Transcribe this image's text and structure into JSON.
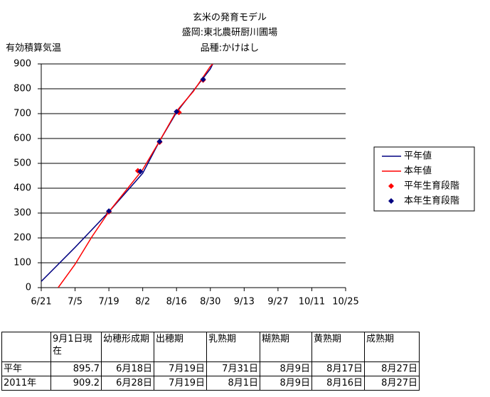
{
  "chart_data": {
    "type": "line",
    "title": [
      "玄米の発育モデル",
      "盛岡:東北農研厨川圃場",
      "品種:かけはし"
    ],
    "y_label": "有効積算気温",
    "xlim": [
      "6/21",
      "10/25"
    ],
    "xticks": [
      "6/21",
      "7/5",
      "7/19",
      "8/2",
      "8/16",
      "8/30",
      "9/13",
      "9/27",
      "10/11",
      "10/25"
    ],
    "ylim": [
      0,
      900
    ],
    "yticks": [
      0,
      100,
      200,
      300,
      400,
      500,
      600,
      700,
      800,
      900
    ],
    "grid": true,
    "series": [
      {
        "name": "平年値",
        "color": "#000080",
        "style": "line",
        "x": [
          "6/21",
          "7/5",
          "7/19",
          "8/2",
          "8/9",
          "8/16",
          "8/30",
          "8/31"
        ],
        "values": [
          25,
          162,
          305,
          460,
          590,
          705,
          880,
          900
        ]
      },
      {
        "name": "本年値",
        "color": "#ff0000",
        "style": "line",
        "x": [
          "6/28",
          "7/5",
          "7/12",
          "7/19",
          "7/26",
          "8/2",
          "8/9",
          "8/16",
          "8/23",
          "8/30",
          "8/31"
        ],
        "values": [
          0,
          94,
          205,
          305,
          390,
          475,
          590,
          710,
          790,
          890,
          900
        ]
      },
      {
        "name": "平年生育段階",
        "color": "#ff0000",
        "style": "marker",
        "x": [
          "7/19",
          "7/31",
          "8/9",
          "8/17",
          "8/27"
        ],
        "values": [
          305,
          470,
          585,
          705,
          835
        ]
      },
      {
        "name": "本年生育段階",
        "color": "#000080",
        "style": "marker",
        "x": [
          "7/19",
          "8/1",
          "8/9",
          "8/16",
          "8/27"
        ],
        "values": [
          308,
          467,
          588,
          708,
          838
        ]
      }
    ]
  },
  "table": {
    "header": [
      "",
      "9月1日現在",
      "幼穂形成期",
      "出穂期",
      "乳熟期",
      "糊熟期",
      "黄熟期",
      "成熟期"
    ],
    "rows": [
      [
        "平年",
        "895.7",
        "6月18日",
        "7月19日",
        "7月31日",
        "8月9日",
        "8月17日",
        "8月27日"
      ],
      [
        "2011年",
        "909.2",
        "6月28日",
        "7月19日",
        "8月1日",
        "8月9日",
        "8月16日",
        "8月27日"
      ]
    ]
  }
}
